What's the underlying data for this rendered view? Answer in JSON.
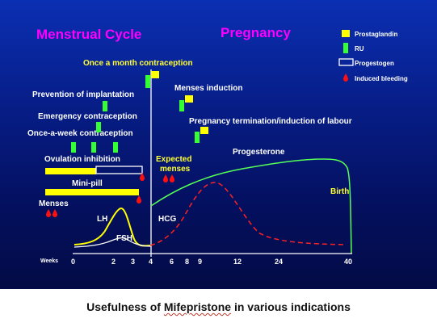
{
  "titles": {
    "left": "Menstrual Cycle",
    "right": "Pregnancy"
  },
  "colors": {
    "background_top": "#0b2fb3",
    "background_bottom": "#030b45",
    "title": "#ff00ff",
    "highlight_text": "#ffff33",
    "body_text": "#ffffff",
    "prostaglandin": "#ffff00",
    "ru": "#33ff33",
    "progestogen": "#ffffff",
    "bleeding": "#ff1010",
    "curve_lh": "#ffff00",
    "curve_fsh": "#ffffff",
    "curve_hcg": "#ff2222",
    "curve_progesterone": "#55ff55",
    "marker_line": "#ffffff"
  },
  "legend": [
    {
      "key": "prostaglandin",
      "label": "Prostaglandin",
      "symbol": "yellow-square"
    },
    {
      "key": "ru",
      "label": "RU",
      "symbol": "green-bar"
    },
    {
      "key": "progestogen",
      "label": "Progestogen",
      "symbol": "white-outline-box"
    },
    {
      "key": "bleeding",
      "label": "Induced bleeding",
      "symbol": "red-drop"
    }
  ],
  "indications": {
    "once_a_month": "Once a month  contraception",
    "menses_induction": "Menses induction",
    "pregnancy_termination": "Pregnancy termination/induction of labour",
    "prevention_implantation": "Prevention of implantation",
    "emergency": "Emergency contraception",
    "once_a_week": "Once-a-week contraception",
    "ovulation_inhibition": "Ovulation inhibition",
    "mini_pill": "Mini-pill",
    "expected_menses_line1": "Expected",
    "expected_menses_line2": "menses",
    "menses": "Menses",
    "progesterone": "Progesterone",
    "birth": "Birth"
  },
  "hormones": {
    "lh": "LH",
    "fsh": "FSH",
    "hcg": "HCG"
  },
  "axis": {
    "label": "Weeks",
    "ticks": [
      "0",
      "2",
      "3",
      "4",
      "6",
      "8",
      "9",
      "12",
      "24",
      "40"
    ]
  },
  "caption": {
    "before": "Usefulness of ",
    "drug": "Mifepristone",
    "after": " in various indications"
  }
}
